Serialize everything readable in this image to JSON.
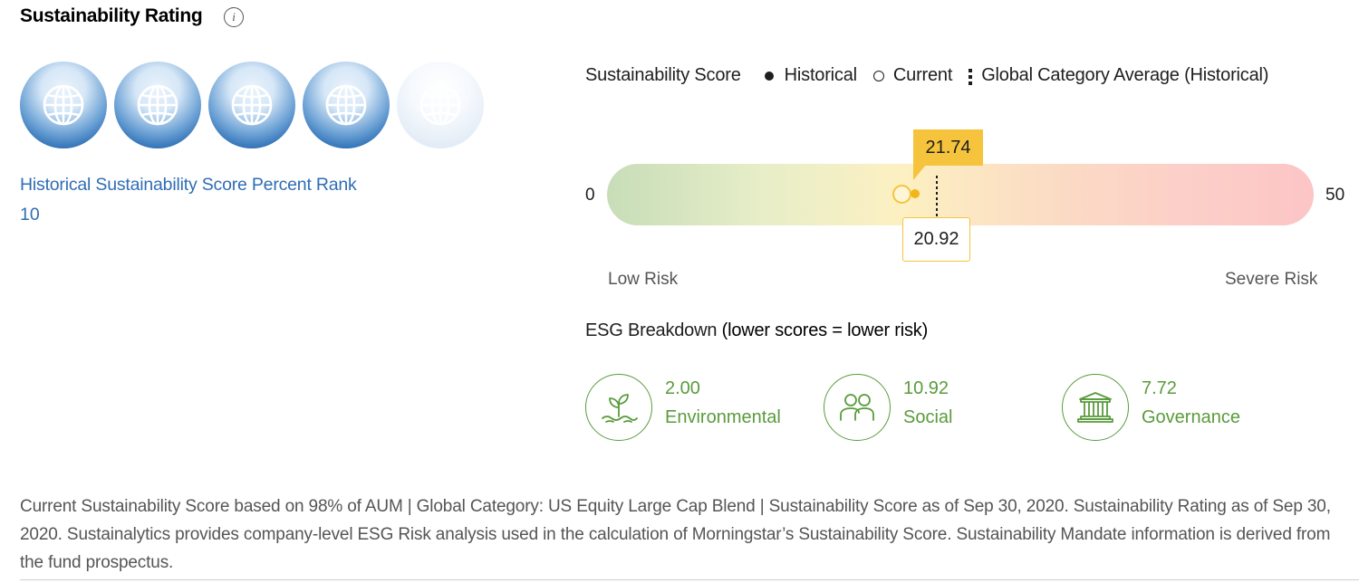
{
  "header": {
    "title": "Sustainability Rating",
    "info_icon": "info-icon"
  },
  "rating": {
    "globes_filled": 4,
    "globes_total": 5,
    "icon": "globe-icon",
    "colors": {
      "filled": "#2e6fb5",
      "empty": "#e4edf7"
    }
  },
  "percent_rank": {
    "label": "Historical Sustainability Score Percent Rank",
    "value": "10"
  },
  "legend": {
    "title": "Sustainability Score",
    "historical": "Historical",
    "current": "Current",
    "average": "Global Category Average (Historical)"
  },
  "score_bar": {
    "min": "0",
    "max": "50",
    "historical_value": "21.74",
    "current_value": "20.92",
    "low_label": "Low Risk",
    "high_label": "Severe Risk",
    "marker_color": "#f5c43c"
  },
  "esg": {
    "title_prefix": "ESG Breakdown ",
    "title_suffix": "(lower scores = lower risk)",
    "color": "#5a9b3c",
    "items": [
      {
        "value": "2.00",
        "label": "Environmental",
        "icon": "plant-icon"
      },
      {
        "value": "10.92",
        "label": "Social",
        "icon": "people-icon"
      },
      {
        "value": "7.72",
        "label": "Governance",
        "icon": "building-icon"
      }
    ]
  },
  "footer": {
    "text": "Current Sustainability Score based on 98% of AUM | Global Category: US Equity Large Cap Blend | Sustainability Score as of Sep 30, 2020. Sustainability Rating as of Sep 30, 2020. Sustainalytics provides company-level ESG Risk analysis used in the calculation of Morningstar’s Sustainability Score. Sustainability Mandate information is derived from the fund prospectus."
  }
}
